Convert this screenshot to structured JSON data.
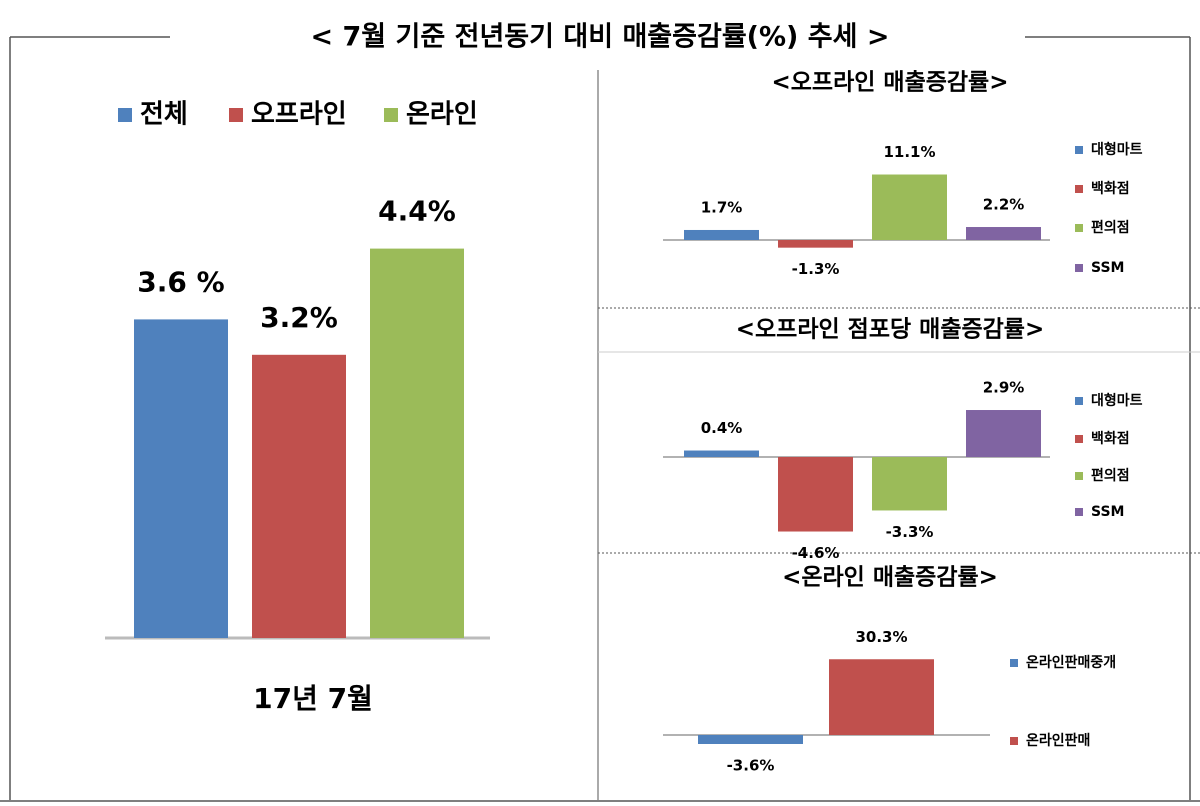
{
  "title": "< 7월 기준 전년동기 대비 매출증감률(%) 추세 >",
  "chart_data": [
    {
      "type": "bar",
      "categories": [
        "17년 7월"
      ],
      "series": [
        {
          "name": "전체",
          "color": "#4f81bd",
          "values": [
            3.6
          ],
          "value_labels": [
            "3.6 %"
          ]
        },
        {
          "name": "오프라인",
          "color": "#c0504d",
          "values": [
            3.2
          ],
          "value_labels": [
            "3.2%"
          ]
        },
        {
          "name": "온라인",
          "color": "#9bbb59",
          "values": [
            4.4
          ],
          "value_labels": [
            "4.4%"
          ]
        }
      ]
    },
    {
      "type": "bar",
      "title": "<오프라인 매출증감률>",
      "series": [
        {
          "name": "대형마트",
          "color": "#4f81bd",
          "values": [
            1.7
          ],
          "value_labels": [
            "1.7%"
          ]
        },
        {
          "name": "백화점",
          "color": "#c0504d",
          "values": [
            -1.3
          ],
          "value_labels": [
            "-1.3%"
          ]
        },
        {
          "name": "편의점",
          "color": "#9bbb59",
          "values": [
            11.1
          ],
          "value_labels": [
            "11.1%"
          ]
        },
        {
          "name": "SSM",
          "color": "#8064a2",
          "values": [
            2.2
          ],
          "value_labels": [
            "2.2%"
          ]
        }
      ]
    },
    {
      "type": "bar",
      "title": "<오프라인 점포당 매출증감률>",
      "series": [
        {
          "name": "대형마트",
          "color": "#4f81bd",
          "values": [
            0.4
          ],
          "value_labels": [
            "0.4%"
          ]
        },
        {
          "name": "백화점",
          "color": "#c0504d",
          "values": [
            -4.6
          ],
          "value_labels": [
            "-4.6%"
          ]
        },
        {
          "name": "편의점",
          "color": "#9bbb59",
          "values": [
            -3.3
          ],
          "value_labels": [
            "-3.3%"
          ]
        },
        {
          "name": "SSM",
          "color": "#8064a2",
          "values": [
            2.9
          ],
          "value_labels": [
            "2.9%"
          ]
        }
      ]
    },
    {
      "type": "bar",
      "title": "<온라인 매출증감률>",
      "series": [
        {
          "name": "온라인판매중개",
          "color": "#4f81bd",
          "values": [
            -3.6
          ],
          "value_labels": [
            "-3.6%"
          ]
        },
        {
          "name": "온라인판매",
          "color": "#c0504d",
          "values": [
            30.3
          ],
          "value_labels": [
            "30.3%"
          ]
        }
      ]
    }
  ]
}
